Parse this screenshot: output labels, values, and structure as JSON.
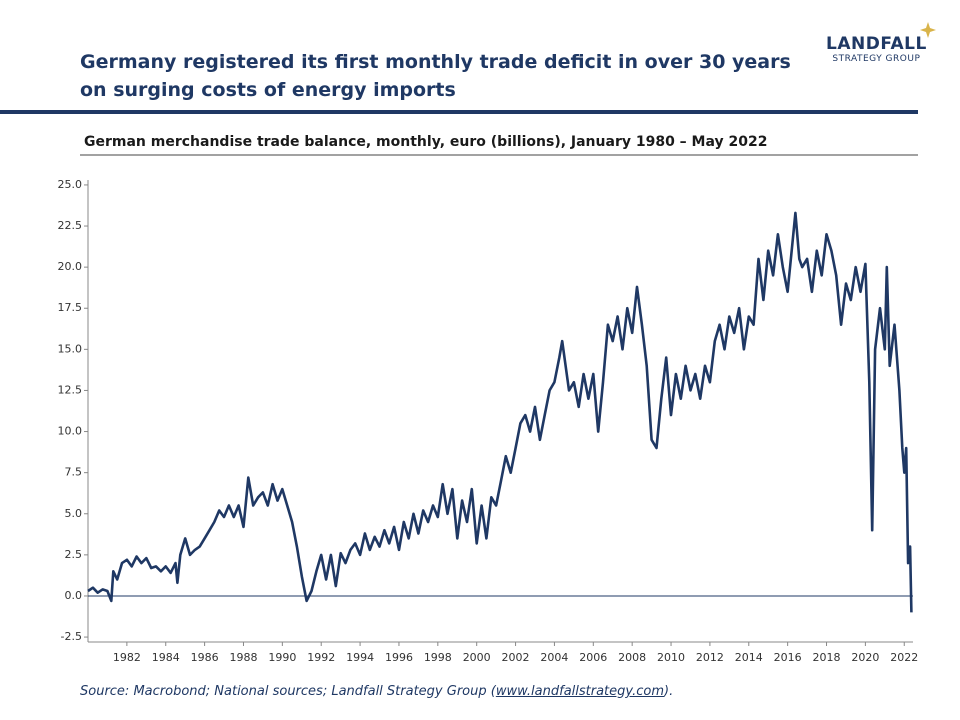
{
  "chart_data": {
    "type": "line",
    "title": "Germany registered its first monthly trade deficit in over 30 years on surging costs of energy imports",
    "logo": {
      "name": "LANDFALL",
      "tagline": "STRATEGY GROUP"
    },
    "subtitle": "German merchandise trade balance, monthly, euro (billions), January 1980 – May 2022",
    "source": {
      "text": "Source: Macrobond; National sources; Landfall Strategy Group (",
      "link": "www.landfallstrategy.com",
      "end": ")."
    },
    "color": "#1f3864",
    "x": [
      1980.0,
      1980.25,
      1980.5,
      1980.75,
      1981.0,
      1981.2,
      1981.3,
      1981.5,
      1981.75,
      1982.0,
      1982.25,
      1982.5,
      1982.75,
      1983.0,
      1983.25,
      1983.5,
      1983.75,
      1984.0,
      1984.25,
      1984.5,
      1984.6,
      1984.75,
      1985.0,
      1985.25,
      1985.5,
      1985.75,
      1986.0,
      1986.25,
      1986.5,
      1986.75,
      1987.0,
      1987.25,
      1987.5,
      1987.75,
      1988.0,
      1988.25,
      1988.5,
      1988.75,
      1989.0,
      1989.25,
      1989.5,
      1989.75,
      1990.0,
      1990.25,
      1990.5,
      1990.75,
      1991.0,
      1991.25,
      1991.5,
      1991.75,
      1992.0,
      1992.25,
      1992.5,
      1992.75,
      1993.0,
      1993.25,
      1993.5,
      1993.75,
      1994.0,
      1994.25,
      1994.5,
      1994.75,
      1995.0,
      1995.25,
      1995.5,
      1995.75,
      1996.0,
      1996.25,
      1996.5,
      1996.75,
      1997.0,
      1997.25,
      1997.5,
      1997.75,
      1998.0,
      1998.25,
      1998.5,
      1998.75,
      1999.0,
      1999.25,
      1999.5,
      1999.75,
      2000.0,
      2000.25,
      2000.5,
      2000.75,
      2001.0,
      2001.25,
      2001.5,
      2001.75,
      2002.0,
      2002.25,
      2002.5,
      2002.75,
      2003.0,
      2003.25,
      2003.5,
      2003.75,
      2004.0,
      2004.25,
      2004.4,
      2004.75,
      2005.0,
      2005.25,
      2005.5,
      2005.75,
      2006.0,
      2006.25,
      2006.5,
      2006.75,
      2007.0,
      2007.25,
      2007.5,
      2007.75,
      2008.0,
      2008.25,
      2008.5,
      2008.75,
      2009.0,
      2009.25,
      2009.5,
      2009.75,
      2010.0,
      2010.25,
      2010.5,
      2010.75,
      2011.0,
      2011.25,
      2011.5,
      2011.75,
      2012.0,
      2012.25,
      2012.5,
      2012.75,
      2013.0,
      2013.25,
      2013.5,
      2013.75,
      2014.0,
      2014.25,
      2014.5,
      2014.75,
      2015.0,
      2015.25,
      2015.5,
      2015.75,
      2016.0,
      2016.25,
      2016.4,
      2016.6,
      2016.75,
      2017.0,
      2017.25,
      2017.5,
      2017.75,
      2018.0,
      2018.25,
      2018.5,
      2018.75,
      2019.0,
      2019.25,
      2019.5,
      2019.75,
      2020.0,
      2020.2,
      2020.35,
      2020.5,
      2020.75,
      2021.0,
      2021.1,
      2021.25,
      2021.5,
      2021.75,
      2021.9,
      2022.0,
      2022.1,
      2022.2,
      2022.3,
      2022.37
    ],
    "values": [
      0.3,
      0.5,
      0.2,
      0.4,
      0.3,
      -0.3,
      1.5,
      1.0,
      2.0,
      2.2,
      1.8,
      2.4,
      2.0,
      2.3,
      1.7,
      1.8,
      1.5,
      1.8,
      1.4,
      2.0,
      0.8,
      2.5,
      3.5,
      2.5,
      2.8,
      3.0,
      3.5,
      4.0,
      4.5,
      5.2,
      4.8,
      5.5,
      4.8,
      5.5,
      4.2,
      7.2,
      5.5,
      6.0,
      6.3,
      5.5,
      6.8,
      5.8,
      6.5,
      5.5,
      4.5,
      3.0,
      1.2,
      -0.3,
      0.3,
      1.5,
      2.5,
      1.0,
      2.5,
      0.6,
      2.6,
      2.0,
      2.8,
      3.2,
      2.5,
      3.8,
      2.8,
      3.6,
      3.0,
      4.0,
      3.2,
      4.2,
      2.8,
      4.5,
      3.5,
      5.0,
      3.8,
      5.2,
      4.5,
      5.5,
      4.8,
      6.8,
      5.0,
      6.5,
      3.5,
      5.8,
      4.5,
      6.5,
      3.2,
      5.5,
      3.5,
      6.0,
      5.5,
      7.0,
      8.5,
      7.5,
      9.0,
      10.5,
      11.0,
      10.0,
      11.5,
      9.5,
      11.0,
      12.5,
      13.0,
      14.5,
      15.5,
      12.5,
      13.0,
      11.5,
      13.5,
      12.0,
      13.5,
      10.0,
      13.0,
      16.5,
      15.5,
      17.0,
      15.0,
      17.5,
      16.0,
      18.8,
      16.5,
      14.0,
      9.5,
      9.0,
      12.0,
      14.5,
      11.0,
      13.5,
      12.0,
      14.0,
      12.5,
      13.5,
      12.0,
      14.0,
      13.0,
      15.5,
      16.5,
      15.0,
      17.0,
      16.0,
      17.5,
      15.0,
      17.0,
      16.5,
      20.5,
      18.0,
      21.0,
      19.5,
      22.0,
      20.0,
      18.5,
      21.5,
      23.3,
      20.5,
      20.0,
      20.5,
      18.5,
      21.0,
      19.5,
      22.0,
      21.0,
      19.5,
      16.5,
      19.0,
      18.0,
      20.0,
      18.5,
      20.2,
      13.0,
      4.0,
      15.0,
      17.5,
      15.0,
      20.0,
      14.0,
      16.5,
      12.5,
      9.0,
      7.5,
      9.0,
      2.0,
      3.0,
      -1.0
    ],
    "xlim": [
      1980,
      2022.45
    ],
    "xticks": [
      1982,
      1984,
      1986,
      1988,
      1990,
      1992,
      1994,
      1996,
      1998,
      2000,
      2002,
      2004,
      2006,
      2008,
      2010,
      2012,
      2014,
      2016,
      2018,
      2020,
      2022
    ],
    "ylim": [
      -2.8,
      25.3
    ],
    "yticks": [
      {
        "value": -2.5,
        "label": "-2.5"
      },
      {
        "value": 0,
        "label": "0.0"
      },
      {
        "value": 2.5,
        "label": "2.5"
      },
      {
        "value": 5,
        "label": "5.0"
      },
      {
        "value": 7.5,
        "label": "7.5"
      },
      {
        "value": 10,
        "label": "10.0"
      },
      {
        "value": 12.5,
        "label": "12.5"
      },
      {
        "value": 15,
        "label": "15.0"
      },
      {
        "value": 17.5,
        "label": "17.5"
      },
      {
        "value": 20,
        "label": "20.0"
      },
      {
        "value": 22.5,
        "label": "22.5"
      },
      {
        "value": 25,
        "label": "25.0"
      }
    ],
    "grid": false
  }
}
